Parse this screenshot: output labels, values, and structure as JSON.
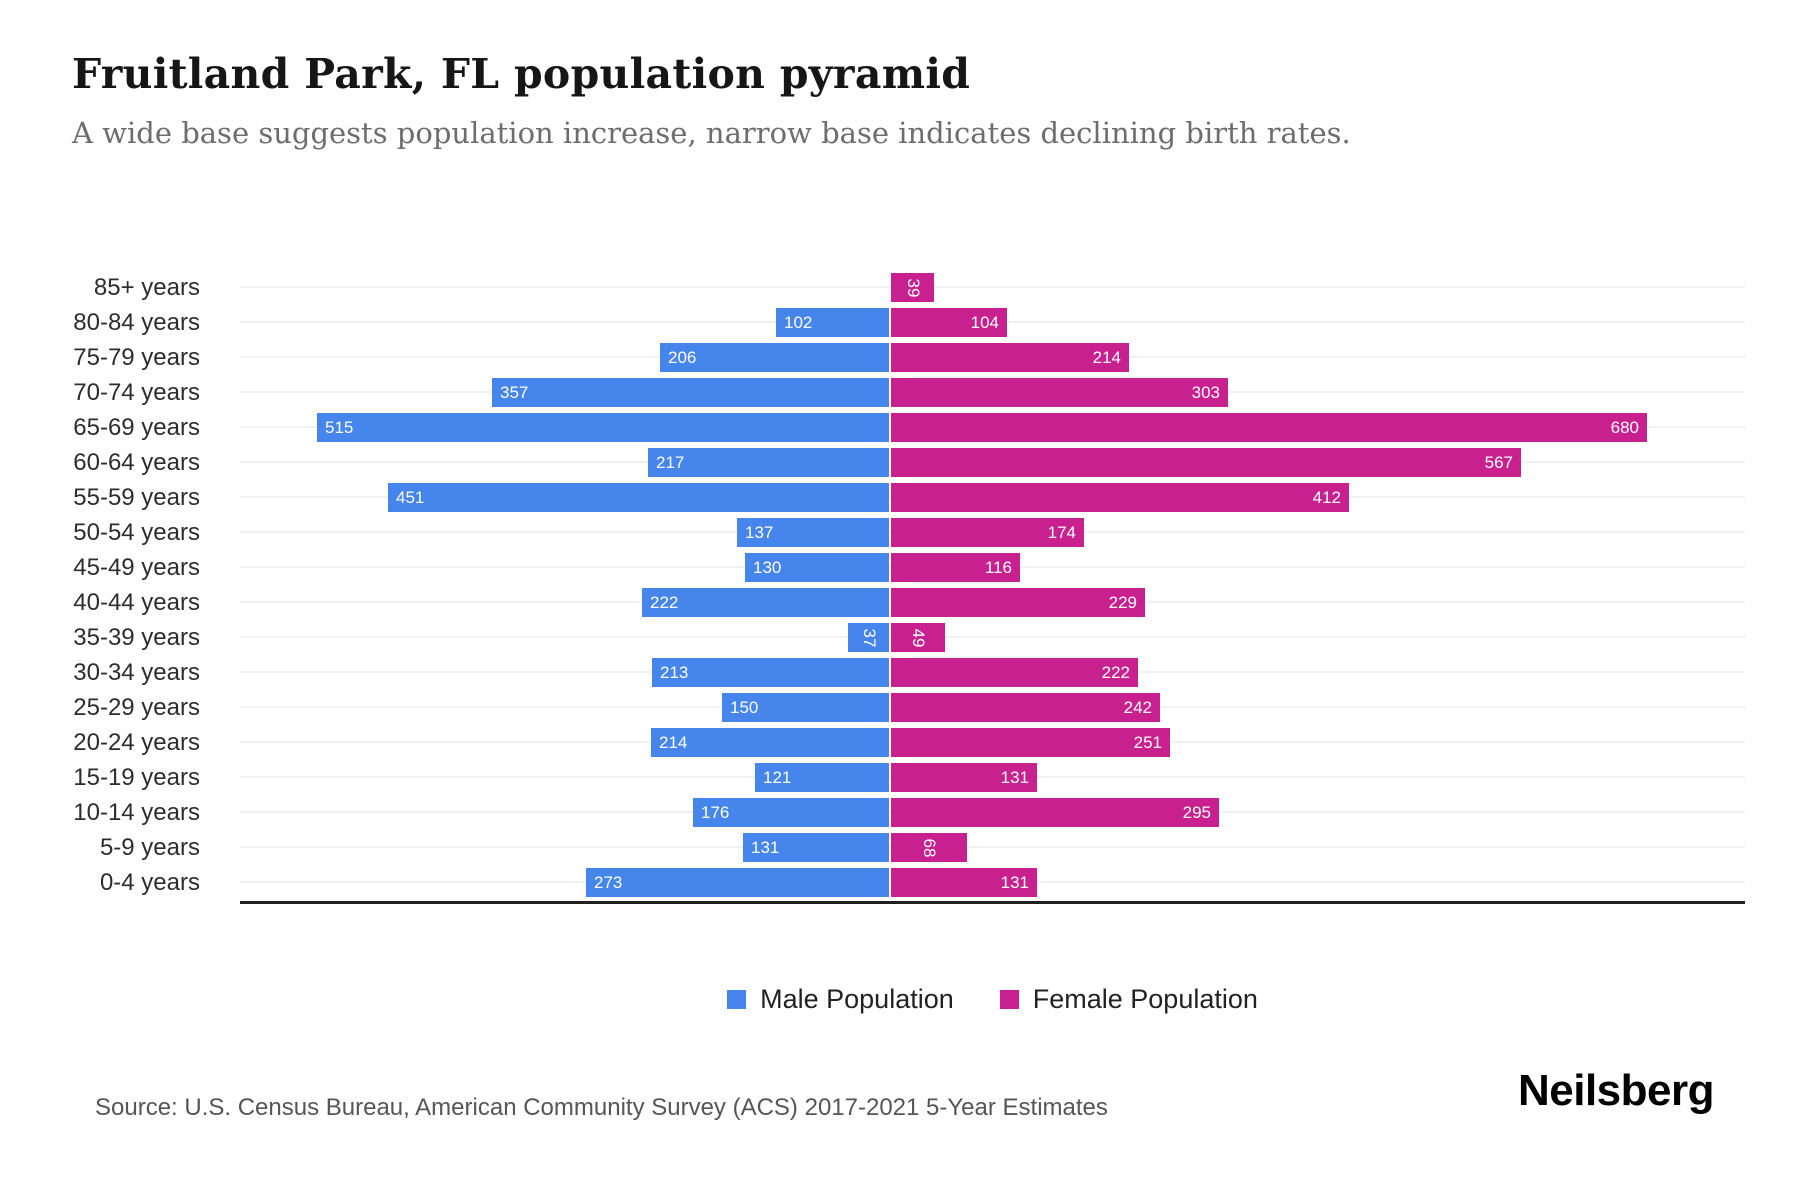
{
  "header": {
    "title": "Fruitland Park, FL population pyramid",
    "subtitle": "A wide base suggests population increase, narrow base indicates declining birth rates."
  },
  "chart_data": {
    "type": "bar",
    "subtype": "population-pyramid",
    "title": "Fruitland Park, FL population pyramid",
    "categories": [
      "85+ years",
      "80-84 years",
      "75-79 years",
      "70-74 years",
      "65-69 years",
      "60-64 years",
      "55-59 years",
      "50-54 years",
      "45-49 years",
      "40-44 years",
      "35-39 years",
      "30-34 years",
      "25-29 years",
      "20-24 years",
      "15-19 years",
      "10-14 years",
      "5-9 years",
      "0-4 years"
    ],
    "series": [
      {
        "name": "Male Population",
        "side": "left",
        "color": "#4685EC",
        "values": [
          null,
          102,
          206,
          357,
          515,
          217,
          451,
          137,
          130,
          222,
          37,
          213,
          150,
          214,
          121,
          176,
          131,
          273
        ]
      },
      {
        "name": "Female Population",
        "side": "right",
        "color": "#C9208F",
        "values": [
          39,
          104,
          214,
          303,
          680,
          567,
          412,
          174,
          116,
          229,
          49,
          222,
          242,
          251,
          131,
          295,
          68,
          131
        ]
      }
    ],
    "axis": {
      "left_max": 585,
      "right_max": 770,
      "tick_labels_shown": false
    },
    "grid": true,
    "legend_position": "bottom-center",
    "value_labels": "inside-end, white, rotated vertical when value is small"
  },
  "footer": {
    "source": "Source: U.S. Census Bureau, American Community Survey (ACS) 2017-2021 5-Year Estimates",
    "brand": "Neilsberg"
  }
}
